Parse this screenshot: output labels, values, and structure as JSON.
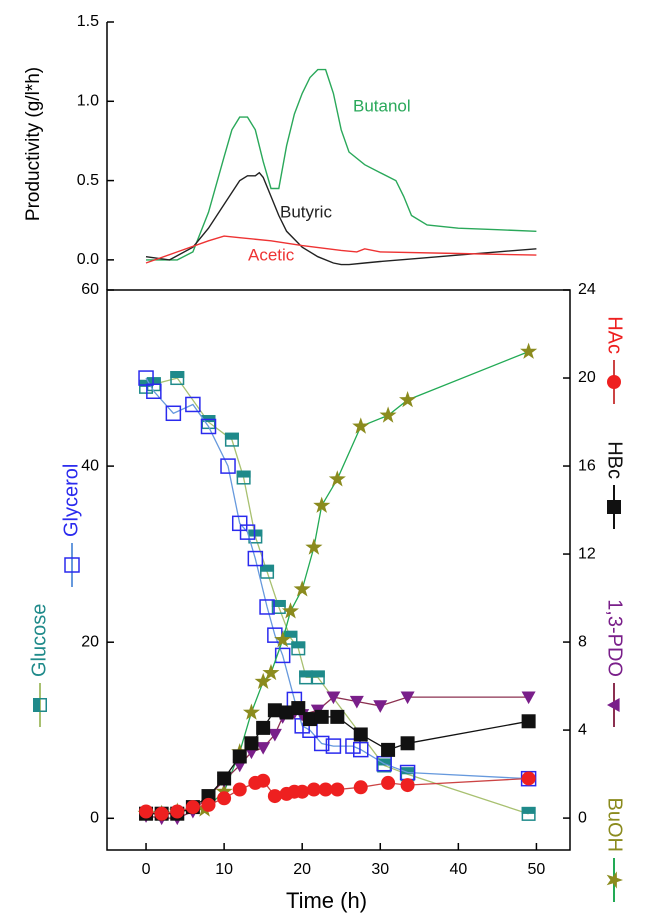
{
  "chart_data": [
    {
      "type": "line",
      "ylabel": "Productivity (g/l*h)",
      "xlim": [
        -5,
        54.3
      ],
      "ylim": [
        -0.19,
        1.5
      ],
      "yticks": [
        {
          "value": 0,
          "label": "0.0"
        },
        0.5,
        {
          "value": 1,
          "label": "1.0"
        },
        1.5
      ],
      "series": [
        {
          "name": "Butanol",
          "color": "#2aa85a",
          "x": [
            0,
            2,
            4,
            6,
            8,
            10,
            11,
            12,
            13,
            14,
            15,
            16,
            17,
            18,
            19,
            20,
            21,
            22,
            23,
            24,
            25,
            26,
            28,
            30,
            32,
            33,
            34,
            36,
            40,
            45,
            50
          ],
          "values": [
            0,
            0,
            0,
            0.05,
            0.3,
            0.65,
            0.82,
            0.9,
            0.9,
            0.82,
            0.62,
            0.45,
            0.45,
            0.72,
            0.92,
            1.05,
            1.15,
            1.2,
            1.2,
            1.05,
            0.82,
            0.68,
            0.6,
            0.55,
            0.5,
            0.4,
            0.28,
            0.22,
            0.2,
            0.19,
            0.18
          ]
        },
        {
          "name": "Butyric",
          "color": "#222222",
          "x": [
            0,
            3,
            6,
            8,
            10,
            12,
            13,
            14,
            14.5,
            15,
            16,
            17,
            18,
            20,
            22,
            24,
            25,
            26,
            28,
            30,
            35,
            40,
            45,
            50
          ],
          "values": [
            0.02,
            0,
            0.08,
            0.2,
            0.35,
            0.5,
            0.53,
            0.53,
            0.55,
            0.52,
            0.4,
            0.28,
            0.18,
            0.08,
            0.02,
            -0.02,
            -0.03,
            -0.03,
            -0.02,
            -0.01,
            0.01,
            0.03,
            0.05,
            0.07
          ]
        },
        {
          "name": "Acetic",
          "color": "#ee3333",
          "x": [
            0,
            4,
            8,
            10,
            12,
            16,
            20,
            25,
            27,
            28,
            30,
            40,
            50
          ],
          "values": [
            -0.02,
            0.05,
            0.12,
            0.15,
            0.14,
            0.12,
            0.09,
            0.06,
            0.05,
            0.07,
            0.05,
            0.04,
            0.03
          ]
        }
      ]
    },
    {
      "type": "line",
      "xlabel": "Time (h)",
      "xlim": [
        -5,
        54.3
      ],
      "xticks": [
        0,
        10,
        20,
        30,
        40,
        50
      ],
      "ylim": [
        -3.6,
        60
      ],
      "yticks": [
        0,
        20,
        40,
        60
      ],
      "y2lim": [
        -1.45,
        24
      ],
      "y2ticks": [
        0,
        4,
        8,
        12,
        16,
        20,
        24
      ],
      "series": [
        {
          "name": "Glucose",
          "color": "#1f8a8a",
          "line_color": "#a8c070",
          "marker": "half-square",
          "x": [
            0,
            1,
            4,
            8,
            11,
            12.5,
            14,
            15.5,
            17,
            18.5,
            19.5,
            20.5,
            22,
            30.5,
            33.5,
            49
          ],
          "values": [
            49,
            49.3,
            50,
            45,
            43,
            38.7,
            32,
            28,
            24,
            20.5,
            19.3,
            16,
            16,
            6,
            5,
            0.5
          ]
        },
        {
          "name": "Glycerol",
          "color": "#2a2aee",
          "line_color": "#6699dd",
          "marker": "open-square",
          "x": [
            0,
            1,
            3.5,
            6,
            8,
            10.5,
            12,
            13,
            14,
            15.5,
            16.5,
            17.5,
            19,
            20,
            21,
            22.5,
            24,
            26.5,
            27.5,
            30.5,
            33.5,
            49
          ],
          "values": [
            50,
            48.5,
            46,
            47,
            44.5,
            40,
            33.5,
            32.5,
            29.5,
            24,
            20.8,
            18.5,
            13.5,
            10.5,
            10,
            8.5,
            8.2,
            8.2,
            7.8,
            6.2,
            5.2,
            4.5
          ]
        },
        {
          "name": "BuOH",
          "color": "#8b8b1e",
          "line_color": "#22aa55",
          "marker": "star",
          "axis": "y2",
          "x": [
            0,
            2,
            4,
            7.5,
            10,
            12,
            13.5,
            15,
            16,
            17.5,
            18.5,
            20,
            21.5,
            22.5,
            24.5,
            27.5,
            31,
            33.5,
            49
          ],
          "values": [
            0.2,
            0.2,
            0.3,
            0.4,
            1.2,
            3,
            4.8,
            6.2,
            6.6,
            8.1,
            9.4,
            10.4,
            12.3,
            14.2,
            15.4,
            17.8,
            18.3,
            19,
            21.2
          ]
        },
        {
          "name": "1,3-PDO",
          "color": "#7a1f8a",
          "line_color": "#8b3050",
          "marker": "triangle-down",
          "axis": "y2",
          "x": [
            0,
            2,
            4,
            6,
            8,
            10,
            12,
            13.5,
            15,
            16.5,
            17.5,
            19,
            20,
            22,
            24,
            27,
            30,
            33.5,
            49
          ],
          "values": [
            0.1,
            0,
            0,
            0.3,
            1,
            1.7,
            2.4,
            3,
            3.2,
            3.8,
            4.6,
            4.8,
            4.7,
            4.9,
            5.5,
            5.3,
            5.1,
            5.5,
            5.5
          ]
        },
        {
          "name": "HBc",
          "color": "#111111",
          "line_color": "#111111",
          "marker": "square",
          "axis": "y2",
          "x": [
            0,
            2,
            4,
            6,
            8,
            10,
            12,
            13.5,
            15,
            16.5,
            18,
            19.5,
            21,
            22.5,
            24.5,
            27.5,
            31,
            33.5,
            49
          ],
          "values": [
            0.2,
            0.2,
            0.2,
            0.5,
            1,
            1.8,
            2.8,
            3.4,
            4.1,
            4.9,
            4.8,
            5,
            4.5,
            4.6,
            4.6,
            3.8,
            3.1,
            3.4,
            4.4
          ]
        },
        {
          "name": "HAc",
          "color": "#ee2020",
          "line_color": "#cc4444",
          "marker": "circle",
          "axis": "y2",
          "x": [
            0,
            2,
            4,
            6,
            8,
            10,
            12,
            14,
            15,
            16.5,
            18,
            19,
            20,
            21.5,
            23,
            24.5,
            27.5,
            31,
            33.5,
            49
          ],
          "values": [
            0.3,
            0.2,
            0.3,
            0.5,
            0.6,
            0.9,
            1.3,
            1.6,
            1.7,
            1,
            1.1,
            1.2,
            1.2,
            1.3,
            1.3,
            1.3,
            1.4,
            1.6,
            1.5,
            1.8
          ]
        }
      ]
    }
  ]
}
